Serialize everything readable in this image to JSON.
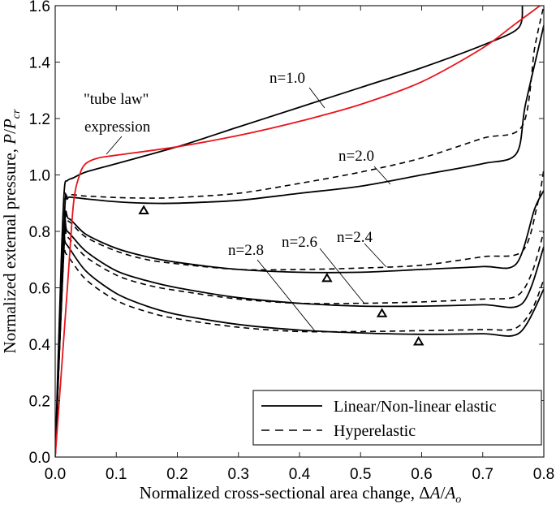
{
  "chart_data": {
    "type": "line",
    "title": "",
    "xlabel": "Normalized cross-sectional area change, ΔA/A_o",
    "ylabel": "Normalized external pressure, P/P_cr",
    "xlim": [
      0.0,
      0.8
    ],
    "ylim": [
      0.0,
      1.6
    ],
    "xticks": [
      "0.0",
      "0.1",
      "0.2",
      "0.3",
      "0.4",
      "0.5",
      "0.6",
      "0.7",
      "0.8"
    ],
    "yticks": [
      "0.0",
      "0.2",
      "0.4",
      "0.6",
      "0.8",
      "1.0",
      "1.2",
      "1.4",
      "1.6"
    ],
    "grid": false,
    "legend": {
      "position": "lower right",
      "entries": [
        {
          "label": "Linear/Non-linear elastic",
          "style": "solid"
        },
        {
          "label": "Hyperelastic",
          "style": "dashed"
        }
      ]
    },
    "annotations": [
      {
        "text": "n=1.0",
        "x": 0.38,
        "y": 1.35
      },
      {
        "text": "n=2.0",
        "x": 0.5,
        "y": 1.07
      },
      {
        "text": "n=2.4",
        "x": 0.58,
        "y": 0.78
      },
      {
        "text": "n=2.6",
        "x": 0.45,
        "y": 0.77
      },
      {
        "text": "n=2.8",
        "x": 0.35,
        "y": 0.74
      },
      {
        "text": "\"tube law\"",
        "x": 0.1,
        "y": 1.25
      },
      {
        "text": "expression",
        "x": 0.1,
        "y": 1.19
      }
    ],
    "series": [
      {
        "name": "tube law expression",
        "style": "red",
        "color": "#e8131b",
        "x": [
          0.0,
          0.02,
          0.03,
          0.04,
          0.05,
          0.07,
          0.1,
          0.2,
          0.3,
          0.4,
          0.5,
          0.6,
          0.7,
          0.75,
          0.8
        ],
        "y": [
          0.0,
          0.6,
          0.9,
          1.0,
          1.04,
          1.06,
          1.07,
          1.1,
          1.14,
          1.19,
          1.25,
          1.33,
          1.45,
          1.53,
          1.61
        ]
      },
      {
        "name": "n=1.0 Linear/Non-linear elastic",
        "style": "solid",
        "x": [
          0.0,
          0.01,
          0.015,
          0.02,
          0.03,
          0.05,
          0.1,
          0.2,
          0.3,
          0.4,
          0.5,
          0.6,
          0.7,
          0.758,
          0.765
        ],
        "y": [
          0.0,
          0.7,
          0.95,
          0.98,
          0.99,
          1.01,
          1.04,
          1.1,
          1.17,
          1.24,
          1.31,
          1.38,
          1.46,
          1.52,
          1.6
        ]
      },
      {
        "name": "n=2.0 Linear/Non-linear elastic",
        "style": "solid",
        "x": [
          0.0,
          0.015,
          0.02,
          0.03,
          0.05,
          0.1,
          0.15,
          0.2,
          0.3,
          0.4,
          0.5,
          0.6,
          0.7,
          0.755,
          0.77,
          0.8
        ],
        "y": [
          0.0,
          0.85,
          0.915,
          0.92,
          0.915,
          0.905,
          0.9,
          0.9,
          0.91,
          0.935,
          0.96,
          1.0,
          1.04,
          1.075,
          1.25,
          1.53
        ]
      },
      {
        "name": "n=2.0 Hyperelastic",
        "style": "dashed",
        "x": [
          0.0,
          0.015,
          0.02,
          0.05,
          0.1,
          0.15,
          0.2,
          0.3,
          0.4,
          0.5,
          0.6,
          0.7,
          0.765,
          0.785,
          0.8
        ],
        "y": [
          0.0,
          0.85,
          0.925,
          0.925,
          0.92,
          0.918,
          0.92,
          0.935,
          0.97,
          1.01,
          1.06,
          1.13,
          1.175,
          1.45,
          1.6
        ]
      },
      {
        "name": "n=2.4 Linear/Non-linear elastic",
        "style": "solid",
        "x": [
          0.0,
          0.015,
          0.022,
          0.05,
          0.1,
          0.15,
          0.2,
          0.3,
          0.4,
          0.5,
          0.6,
          0.7,
          0.755,
          0.785,
          0.8
        ],
        "y": [
          0.0,
          0.8,
          0.845,
          0.79,
          0.74,
          0.71,
          0.69,
          0.665,
          0.655,
          0.655,
          0.665,
          0.675,
          0.685,
          0.88,
          0.945
        ]
      },
      {
        "name": "n=2.4 Hyperelastic",
        "style": "dashed",
        "x": [
          0.0,
          0.015,
          0.022,
          0.05,
          0.1,
          0.15,
          0.2,
          0.3,
          0.4,
          0.5,
          0.6,
          0.7,
          0.765,
          0.79,
          0.8
        ],
        "y": [
          0.0,
          0.8,
          0.835,
          0.78,
          0.73,
          0.7,
          0.685,
          0.665,
          0.665,
          0.67,
          0.68,
          0.71,
          0.73,
          0.9,
          1.02
        ]
      },
      {
        "name": "n=2.6 Linear/Non-linear elastic",
        "style": "solid",
        "x": [
          0.0,
          0.015,
          0.02,
          0.05,
          0.1,
          0.15,
          0.2,
          0.3,
          0.4,
          0.5,
          0.6,
          0.7,
          0.765,
          0.8
        ],
        "y": [
          0.0,
          0.78,
          0.8,
          0.73,
          0.66,
          0.625,
          0.6,
          0.565,
          0.545,
          0.535,
          0.535,
          0.54,
          0.545,
          0.745
        ]
      },
      {
        "name": "n=2.6 Hyperelastic",
        "style": "dashed",
        "x": [
          0.0,
          0.015,
          0.02,
          0.05,
          0.1,
          0.15,
          0.2,
          0.3,
          0.4,
          0.5,
          0.6,
          0.7,
          0.755,
          0.78,
          0.8
        ],
        "y": [
          0.0,
          0.76,
          0.78,
          0.71,
          0.645,
          0.61,
          0.59,
          0.56,
          0.545,
          0.545,
          0.55,
          0.56,
          0.57,
          0.65,
          0.8
        ]
      },
      {
        "name": "n=2.8 Linear/Non-linear elastic",
        "style": "solid",
        "x": [
          0.0,
          0.013,
          0.018,
          0.05,
          0.1,
          0.15,
          0.2,
          0.3,
          0.4,
          0.5,
          0.6,
          0.7,
          0.76,
          0.8
        ],
        "y": [
          0.0,
          0.74,
          0.755,
          0.66,
          0.58,
          0.535,
          0.505,
          0.47,
          0.45,
          0.44,
          0.435,
          0.437,
          0.44,
          0.595
        ]
      },
      {
        "name": "n=2.8 Hyperelastic",
        "style": "dashed",
        "x": [
          0.0,
          0.013,
          0.018,
          0.05,
          0.1,
          0.15,
          0.2,
          0.3,
          0.4,
          0.5,
          0.6,
          0.7,
          0.752,
          0.78,
          0.8
        ],
        "y": [
          0.0,
          0.71,
          0.72,
          0.63,
          0.555,
          0.515,
          0.49,
          0.46,
          0.445,
          0.445,
          0.448,
          0.452,
          0.455,
          0.52,
          0.63
        ]
      }
    ],
    "markers": {
      "shape": "triangle-open",
      "points": [
        {
          "x": 0.145,
          "y": 0.875
        },
        {
          "x": 0.445,
          "y": 0.635
        },
        {
          "x": 0.535,
          "y": 0.51
        },
        {
          "x": 0.595,
          "y": 0.41
        }
      ]
    }
  },
  "labels": {
    "xlabel_text": "Normalized cross-sectional area change, ",
    "xlabel_math_delta": "Δ",
    "xlabel_math_A": "A",
    "xlabel_math_slash": "/",
    "xlabel_math_Ao": "A",
    "xlabel_math_sub": "o",
    "ylabel_text": "Normalized external pressure, ",
    "ylabel_math_P": "P",
    "ylabel_math_slash": "/",
    "ylabel_math_Pcr": "P",
    "ylabel_math_sub": "cr",
    "n10": "n=1.0",
    "n20": "n=2.0",
    "n24": "n=2.4",
    "n26": "n=2.6",
    "n28": "n=2.8",
    "tube_law_1": "\"tube law\"",
    "tube_law_2": "expression",
    "legend_solid": "Linear/Non-linear elastic",
    "legend_dashed": "Hyperelastic"
  }
}
